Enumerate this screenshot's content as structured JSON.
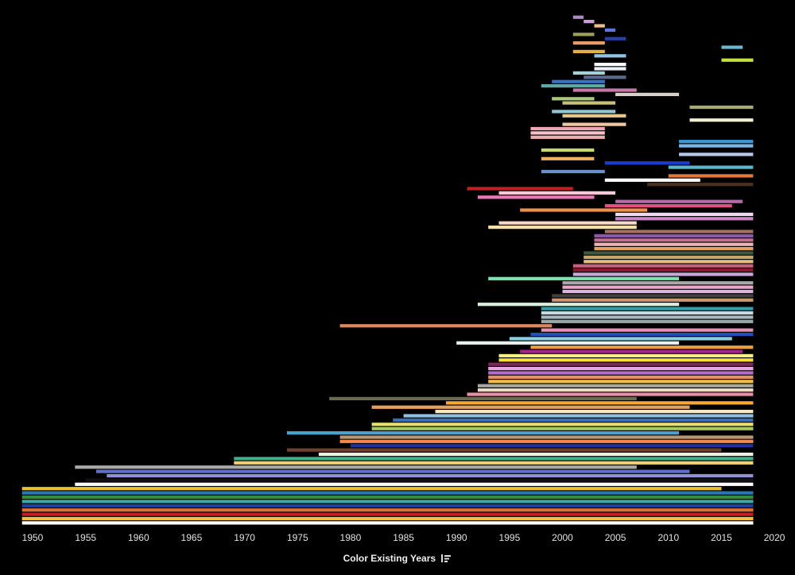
{
  "chart_data": {
    "type": "bar",
    "orientation": "horizontal-range",
    "title": "",
    "xlabel": "Color Existing Years",
    "ylabel": "",
    "xlim": [
      1949,
      2020
    ],
    "xticks": [
      1950,
      1955,
      1960,
      1965,
      1970,
      1975,
      1980,
      1985,
      1990,
      1995,
      2000,
      2005,
      2010,
      2015,
      2020
    ],
    "grid": false,
    "legend": "none",
    "background": "#000000",
    "bars": [
      {
        "start": 2001,
        "end": 2002,
        "color": "#b089c8"
      },
      {
        "start": 2002,
        "end": 2003,
        "color": "#c9a0d6"
      },
      {
        "start": 2003,
        "end": 2004,
        "color": "#f0c08a"
      },
      {
        "start": 2004,
        "end": 2005,
        "color": "#5a78d8"
      },
      {
        "start": 2001,
        "end": 2003,
        "color": "#9aa05a"
      },
      {
        "start": 2004,
        "end": 2006,
        "color": "#2a3fa8"
      },
      {
        "start": 2001,
        "end": 2004,
        "color": "#e89a6a"
      },
      {
        "start": 2015,
        "end": 2017,
        "color": "#6bb8d0"
      },
      {
        "start": 2001,
        "end": 2004,
        "color": "#e0b040"
      },
      {
        "start": 2003,
        "end": 2006,
        "color": "#8fc4e8"
      },
      {
        "start": 2015,
        "end": 2018,
        "color": "#c8e040"
      },
      {
        "start": 2003,
        "end": 2006,
        "color": "#ffffff"
      },
      {
        "start": 2003,
        "end": 2006,
        "color": "#e8f0f8"
      },
      {
        "start": 2001,
        "end": 2004,
        "color": "#a8d0d8"
      },
      {
        "start": 2002,
        "end": 2006,
        "color": "#5a6a8a"
      },
      {
        "start": 1999,
        "end": 2004,
        "color": "#3a70c8"
      },
      {
        "start": 1998,
        "end": 2004,
        "color": "#60a8a8"
      },
      {
        "start": 2001,
        "end": 2007,
        "color": "#c878a8"
      },
      {
        "start": 2005,
        "end": 2011,
        "color": "#d8d0c8"
      },
      {
        "start": 1999,
        "end": 2003,
        "color": "#a8c880"
      },
      {
        "start": 2000,
        "end": 2005,
        "color": "#c8c080"
      },
      {
        "start": 2012,
        "end": 2018,
        "color": "#a8a878"
      },
      {
        "start": 1999,
        "end": 2005,
        "color": "#90c8d8"
      },
      {
        "start": 2000,
        "end": 2006,
        "color": "#e8c888"
      },
      {
        "start": 2012,
        "end": 2018,
        "color": "#f0f0d0"
      },
      {
        "start": 2000,
        "end": 2006,
        "color": "#f0c8a0"
      },
      {
        "start": 1997,
        "end": 2004,
        "color": "#f0a8b8"
      },
      {
        "start": 1997,
        "end": 2004,
        "color": "#f8c0c8"
      },
      {
        "start": 1997,
        "end": 2004,
        "color": "#e8b0b0"
      },
      {
        "start": 2011,
        "end": 2018,
        "color": "#3a98d8"
      },
      {
        "start": 2011,
        "end": 2018,
        "color": "#78b8e8"
      },
      {
        "start": 1998,
        "end": 2003,
        "color": "#c8d870"
      },
      {
        "start": 2011,
        "end": 2018,
        "color": "#b8c8e8"
      },
      {
        "start": 1998,
        "end": 2003,
        "color": "#f0b060"
      },
      {
        "start": 2004,
        "end": 2012,
        "color": "#1a3ad0"
      },
      {
        "start": 2010,
        "end": 2018,
        "color": "#58b8c8"
      },
      {
        "start": 1998,
        "end": 2004,
        "color": "#6a90c8"
      },
      {
        "start": 2010,
        "end": 2018,
        "color": "#e07840"
      },
      {
        "start": 2004,
        "end": 2013,
        "color": "#ffffff"
      },
      {
        "start": 2008,
        "end": 2018,
        "color": "#4a3020"
      },
      {
        "start": 1991,
        "end": 2001,
        "color": "#c02020"
      },
      {
        "start": 1994,
        "end": 2005,
        "color": "#f8c8d8"
      },
      {
        "start": 1992,
        "end": 2003,
        "color": "#e878b8"
      },
      {
        "start": 2005,
        "end": 2017,
        "color": "#b868a8"
      },
      {
        "start": 2004,
        "end": 2016,
        "color": "#e05080"
      },
      {
        "start": 1996,
        "end": 2008,
        "color": "#f09040"
      },
      {
        "start": 2005,
        "end": 2018,
        "color": "#f0d8f0"
      },
      {
        "start": 2005,
        "end": 2018,
        "color": "#c888c8"
      },
      {
        "start": 1994,
        "end": 2007,
        "color": "#f8d8c8"
      },
      {
        "start": 1993,
        "end": 2007,
        "color": "#f8e0a8"
      },
      {
        "start": 2004,
        "end": 2018,
        "color": "#a87060"
      },
      {
        "start": 2003,
        "end": 2018,
        "color": "#8a5aa8"
      },
      {
        "start": 2003,
        "end": 2018,
        "color": "#c07090"
      },
      {
        "start": 2003,
        "end": 2018,
        "color": "#e8b8b8"
      },
      {
        "start": 2003,
        "end": 2018,
        "color": "#e8a060"
      },
      {
        "start": 2002,
        "end": 2018,
        "color": "#405840"
      },
      {
        "start": 2002,
        "end": 2018,
        "color": "#c0a870"
      },
      {
        "start": 2002,
        "end": 2018,
        "color": "#e0c080"
      },
      {
        "start": 2001,
        "end": 2018,
        "color": "#c86080"
      },
      {
        "start": 2001,
        "end": 2018,
        "color": "#8a1830"
      },
      {
        "start": 2001,
        "end": 2018,
        "color": "#c8a8d8"
      },
      {
        "start": 1993,
        "end": 2011,
        "color": "#80e0b0"
      },
      {
        "start": 2000,
        "end": 2018,
        "color": "#a8a8a8"
      },
      {
        "start": 2000,
        "end": 2018,
        "color": "#e8a8c8"
      },
      {
        "start": 2000,
        "end": 2018,
        "color": "#d8b8e0"
      },
      {
        "start": 1999,
        "end": 2018,
        "color": "#404040"
      },
      {
        "start": 1999,
        "end": 2018,
        "color": "#c89870"
      },
      {
        "start": 1992,
        "end": 2011,
        "color": "#d8f0d8"
      },
      {
        "start": 1998,
        "end": 2018,
        "color": "#30a0a8"
      },
      {
        "start": 1998,
        "end": 2018,
        "color": "#c8d8e0"
      },
      {
        "start": 1998,
        "end": 2018,
        "color": "#a8b8c0"
      },
      {
        "start": 1998,
        "end": 2018,
        "color": "#98a8a8"
      },
      {
        "start": 1979,
        "end": 1999,
        "color": "#d88860"
      },
      {
        "start": 1998,
        "end": 2018,
        "color": "#e890b8"
      },
      {
        "start": 1997,
        "end": 2018,
        "color": "#2050b8"
      },
      {
        "start": 1995,
        "end": 2016,
        "color": "#8ad0e0"
      },
      {
        "start": 1990,
        "end": 2011,
        "color": "#e8f0f0"
      },
      {
        "start": 1997,
        "end": 2018,
        "color": "#e8a040"
      },
      {
        "start": 1996,
        "end": 2017,
        "color": "#a82090"
      },
      {
        "start": 1994,
        "end": 2018,
        "color": "#f8f080"
      },
      {
        "start": 1994,
        "end": 2018,
        "color": "#f8e040"
      },
      {
        "start": 1993,
        "end": 2018,
        "color": "#7a2860"
      },
      {
        "start": 1993,
        "end": 2018,
        "color": "#e8a8e8"
      },
      {
        "start": 1993,
        "end": 2018,
        "color": "#b070c8"
      },
      {
        "start": 1993,
        "end": 2018,
        "color": "#e89060"
      },
      {
        "start": 1993,
        "end": 2018,
        "color": "#f0c040"
      },
      {
        "start": 1992,
        "end": 2018,
        "color": "#a8a8a0"
      },
      {
        "start": 1992,
        "end": 2018,
        "color": "#f0d8c0"
      },
      {
        "start": 1991,
        "end": 2018,
        "color": "#e890a8"
      },
      {
        "start": 1978,
        "end": 2007,
        "color": "#6a6a50"
      },
      {
        "start": 1989,
        "end": 2018,
        "color": "#f8a830"
      },
      {
        "start": 1982,
        "end": 2012,
        "color": "#e8a060"
      },
      {
        "start": 1988,
        "end": 2018,
        "color": "#f8e8c0"
      },
      {
        "start": 1985,
        "end": 2018,
        "color": "#90c0e0"
      },
      {
        "start": 1984,
        "end": 2018,
        "color": "#3870b8"
      },
      {
        "start": 1982,
        "end": 2018,
        "color": "#e8e070"
      },
      {
        "start": 1982,
        "end": 2018,
        "color": "#a8c860"
      },
      {
        "start": 1974,
        "end": 2011,
        "color": "#4aa0d0"
      },
      {
        "start": 1979,
        "end": 2018,
        "color": "#b89870"
      },
      {
        "start": 1979,
        "end": 2018,
        "color": "#f08850"
      },
      {
        "start": 1980,
        "end": 2018,
        "color": "#2030a0"
      },
      {
        "start": 1974,
        "end": 2015,
        "color": "#704030"
      },
      {
        "start": 1977,
        "end": 2018,
        "color": "#f0f0e0"
      },
      {
        "start": 1969,
        "end": 2018,
        "color": "#40b090"
      },
      {
        "start": 1969,
        "end": 2018,
        "color": "#f0d070"
      },
      {
        "start": 1954,
        "end": 2007,
        "color": "#a8a8a8"
      },
      {
        "start": 1956,
        "end": 2012,
        "color": "#6070c8"
      },
      {
        "start": 1957,
        "end": 2018,
        "color": "#9090d8"
      },
      {
        "start": 1955,
        "end": 2018,
        "color": "#101010"
      },
      {
        "start": 1954,
        "end": 2018,
        "color": "#ffffff"
      },
      {
        "start": 1949,
        "end": 2015,
        "color": "#e8c030"
      },
      {
        "start": 1949,
        "end": 2018,
        "color": "#2878b8"
      },
      {
        "start": 1949,
        "end": 2018,
        "color": "#309040"
      },
      {
        "start": 1949,
        "end": 2018,
        "color": "#40a8a0"
      },
      {
        "start": 1949,
        "end": 2018,
        "color": "#2040a0"
      },
      {
        "start": 1949,
        "end": 2018,
        "color": "#e07030"
      },
      {
        "start": 1949,
        "end": 2018,
        "color": "#c02020"
      },
      {
        "start": 1949,
        "end": 2018,
        "color": "#f0c040"
      },
      {
        "start": 1949,
        "end": 2018,
        "color": "#ffffff"
      }
    ]
  }
}
